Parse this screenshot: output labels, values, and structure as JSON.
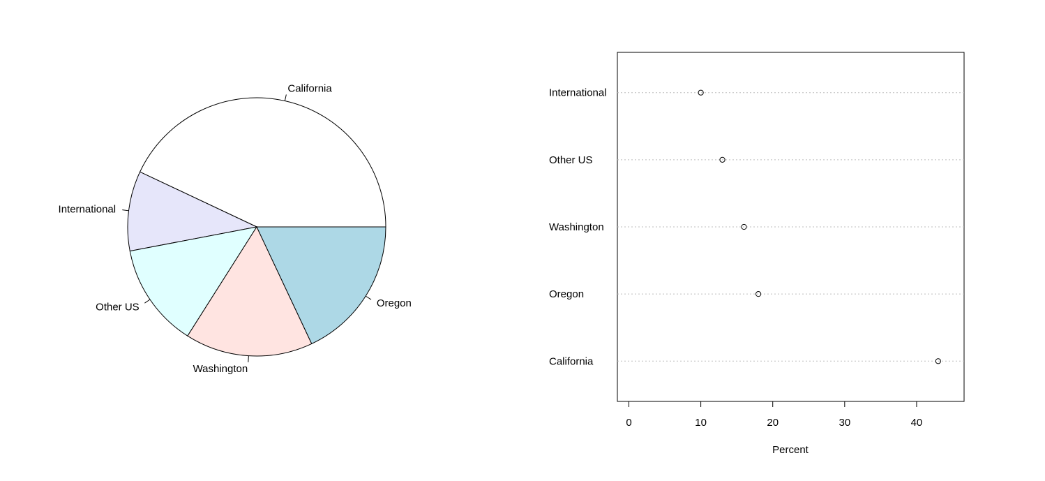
{
  "colors": {
    "background": "#ffffff",
    "stroke": "#000000",
    "gridline": "#bebebe"
  },
  "chart_data": [
    {
      "type": "pie",
      "title": "",
      "categories": [
        "California",
        "International",
        "Other US",
        "Washington",
        "Oregon"
      ],
      "values": [
        43,
        10,
        13,
        16,
        18
      ],
      "colors": [
        "#ffffff",
        "#e6e6fa",
        "#e0ffff",
        "#ffe4e1",
        "#add8e6"
      ],
      "start_angle_deg": 0,
      "direction": "counterclockwise",
      "legend": "none"
    },
    {
      "type": "scatter",
      "subtype": "dotchart",
      "title": "",
      "xlabel": "Percent",
      "ylabel": "",
      "categories": [
        "California",
        "Oregon",
        "Washington",
        "Other US",
        "International"
      ],
      "values": [
        43,
        18,
        16,
        13,
        10
      ],
      "xlim": [
        -1.6,
        46.6
      ],
      "xticks": [
        "0",
        "10",
        "20",
        "30",
        "40"
      ],
      "grid": "dotted horizontal lines per category",
      "marker": "open-circle",
      "legend": "none"
    }
  ]
}
